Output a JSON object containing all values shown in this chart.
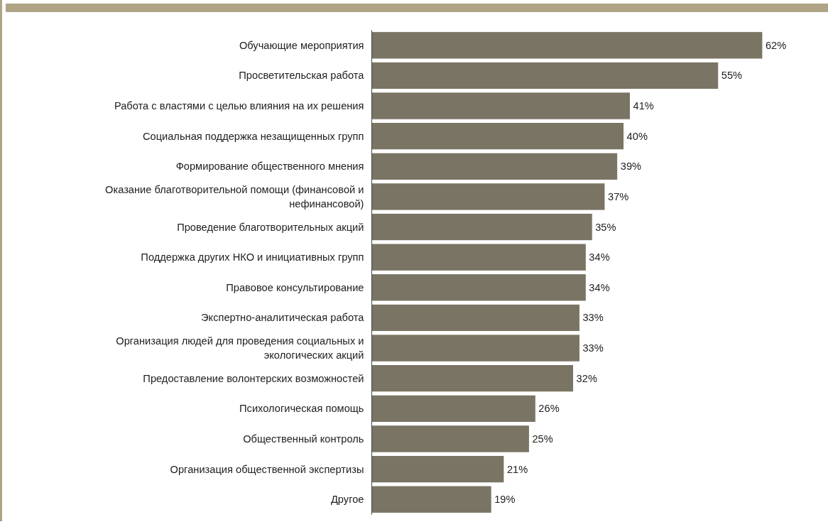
{
  "chart_data": {
    "type": "bar",
    "orientation": "horizontal",
    "categories": [
      "Обучающие мероприятия",
      "Просветительская работа",
      "Работа с властями с целью влияния на их решения",
      "Социальная поддержка незащищенных групп",
      "Формирование общественного мнения",
      "Оказание благотворительной помощи (финансовой и нефинансовой)",
      "Проведение благотворительных акций",
      "Поддержка других НКО и инициативных групп",
      "Правовое консультирование",
      "Экспертно-аналитическая работа",
      "Организация людей для проведения социальных и экологических акций",
      "Предоставление волонтерских возможностей",
      "Психологическая помощь",
      "Общественный контроль",
      "Организация общественной экспертизы",
      "Другое"
    ],
    "values": [
      62,
      55,
      41,
      40,
      39,
      37,
      35,
      34,
      34,
      33,
      33,
      32,
      26,
      25,
      21,
      19
    ],
    "value_labels": [
      "62%",
      "55%",
      "41%",
      "40%",
      "39%",
      "37%",
      "35%",
      "34%",
      "34%",
      "33%",
      "33%",
      "32%",
      "26%",
      "25%",
      "21%",
      "19%"
    ],
    "color": "#7a7464",
    "grid": false
  }
}
